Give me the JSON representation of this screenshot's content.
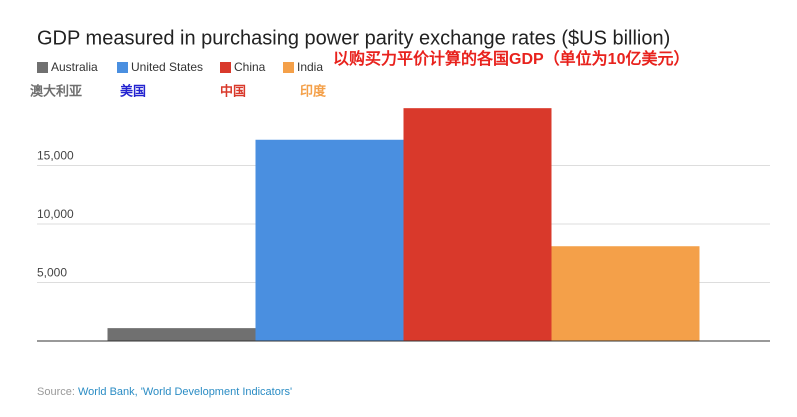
{
  "chart_data": {
    "type": "bar",
    "title": "GDP measured in purchasing power parity exchange rates ($US billion)",
    "subtitle": "以购买力平价计算的各国GDP（单位为10亿美元）",
    "categories": [
      "Australia",
      "United States",
      "China",
      "India"
    ],
    "category_labels_cn": [
      "澳大利亚",
      "美国",
      "中国",
      "印度"
    ],
    "values": [
      1100,
      17200,
      19900,
      8100
    ],
    "colors": [
      "#707070",
      "#4a8fe0",
      "#d9392b",
      "#f4a049"
    ],
    "ylim": [
      0,
      20000
    ],
    "yticks": [
      {
        "value": 5000,
        "label": "5,000"
      },
      {
        "value": 10000,
        "label": "10,000"
      },
      {
        "value": 15000,
        "label": "15,000"
      }
    ],
    "grid": true,
    "legend": "top",
    "source_label": "Source:",
    "source": "World Bank, 'World Development Indicators'"
  }
}
